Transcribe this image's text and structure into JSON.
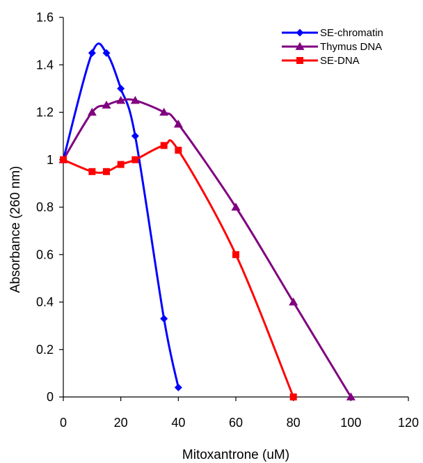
{
  "chart_data": {
    "type": "line",
    "title": "",
    "xlabel": "Mitoxantrone (uM)",
    "ylabel": "Absorbance (260 nm)",
    "xlim": [
      0,
      120
    ],
    "ylim": [
      0,
      1.6
    ],
    "x_ticks": [
      0,
      20,
      40,
      60,
      80,
      100,
      120
    ],
    "y_ticks": [
      0,
      0.2,
      0.4,
      0.6,
      0.8,
      1,
      1.2,
      1.4,
      1.6
    ],
    "x_tick_labels": [
      "0",
      "20",
      "40",
      "60",
      "80",
      "100",
      "120"
    ],
    "y_tick_labels": [
      "0",
      "0.2",
      "0.4",
      "0.6",
      "0.8",
      "1",
      "1.2",
      "1.4",
      "1.6"
    ],
    "grid": false,
    "legend_position": "top-right",
    "series": [
      {
        "name": "SE-chromatin",
        "color": "#0000ff",
        "marker": "diamond",
        "x": [
          0,
          10,
          15,
          20,
          25,
          35,
          40
        ],
        "y": [
          1.0,
          1.45,
          1.45,
          1.3,
          1.1,
          0.33,
          0.04
        ]
      },
      {
        "name": "Thymus DNA",
        "color": "#800080",
        "marker": "triangle",
        "x": [
          0,
          10,
          15,
          20,
          25,
          35,
          40,
          60,
          80,
          100
        ],
        "y": [
          1.0,
          1.2,
          1.23,
          1.25,
          1.25,
          1.2,
          1.15,
          0.8,
          0.4,
          0.0
        ]
      },
      {
        "name": "SE-DNA",
        "color": "#ff0000",
        "marker": "square",
        "x": [
          0,
          10,
          15,
          20,
          25,
          35,
          40,
          60,
          80
        ],
        "y": [
          1.0,
          0.95,
          0.95,
          0.98,
          1.0,
          1.06,
          1.04,
          0.6,
          0.0
        ]
      }
    ]
  }
}
